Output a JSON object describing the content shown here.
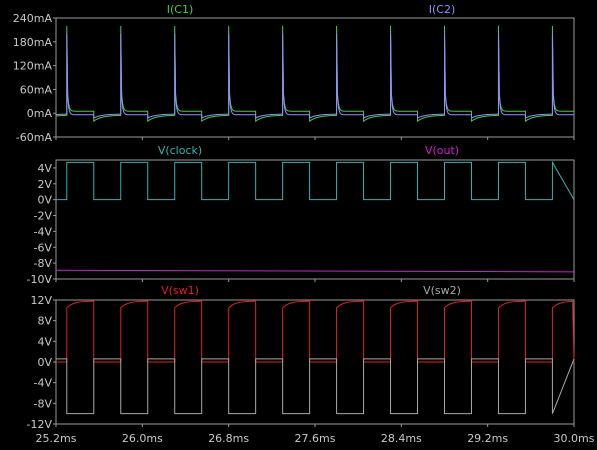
{
  "chart_data": [
    {
      "type": "line",
      "xlabel": "",
      "ylabel": "",
      "xlim": [
        25.2,
        30.0
      ],
      "ylim": [
        -60,
        240
      ],
      "y_ticks": [
        "240mA",
        "180mA",
        "120mA",
        "60mA",
        "0mA",
        "-60mA"
      ],
      "grid": false,
      "legend": "top",
      "waveform": {
        "period_ms": 0.5,
        "first_rise_ms": 25.2,
        "duty": 0.5
      },
      "series": [
        {
          "name": "I(C1)",
          "color": "#43d043",
          "peak": 220,
          "decay_to_high": 5,
          "low_start": -20,
          "low_end": -5
        },
        {
          "name": "I(C2)",
          "color": "#8f8fff",
          "peak": 200,
          "decay_to_high": -4,
          "low_start": -12,
          "low_end": -2
        }
      ]
    },
    {
      "type": "line",
      "xlabel": "",
      "ylabel": "",
      "xlim": [
        25.2,
        30.0
      ],
      "ylim": [
        -10,
        5
      ],
      "y_ticks": [
        "4V",
        "2V",
        "0V",
        "-2V",
        "-4V",
        "-6V",
        "-8V",
        "-10V"
      ],
      "grid": false,
      "legend": "top",
      "series": [
        {
          "name": "V(clock)",
          "color": "#33b3b3",
          "high": 4.7,
          "low": 0,
          "period_ms": 0.5,
          "first_rise_ms": 25.3
        },
        {
          "name": "V(out)",
          "color": "#d01fd0",
          "x": [
            25.2,
            30.0
          ],
          "y": [
            -8.9,
            -9.1
          ]
        }
      ]
    },
    {
      "type": "line",
      "xlabel": "",
      "ylabel": "",
      "xlim": [
        25.2,
        30.0
      ],
      "x_ticks": [
        "25.2ms",
        "26.0ms",
        "26.8ms",
        "27.6ms",
        "28.4ms",
        "29.2ms",
        "30.0ms"
      ],
      "ylim": [
        -12,
        12
      ],
      "y_ticks": [
        "12V",
        "8V",
        "4V",
        "0V",
        "-4V",
        "-8V",
        "-12V"
      ],
      "grid": false,
      "legend": "top",
      "series": [
        {
          "name": "V(sw1)",
          "color": "#e02020",
          "high_start": 10.5,
          "high_end": 11.8,
          "low": 0,
          "period_ms": 0.5,
          "first_rise_ms": 25.3
        },
        {
          "name": "V(sw2)",
          "color": "#a8a8a8",
          "high": 0.6,
          "low": -10,
          "period_ms": 0.5,
          "first_rise_ms": 25.3
        }
      ]
    }
  ]
}
